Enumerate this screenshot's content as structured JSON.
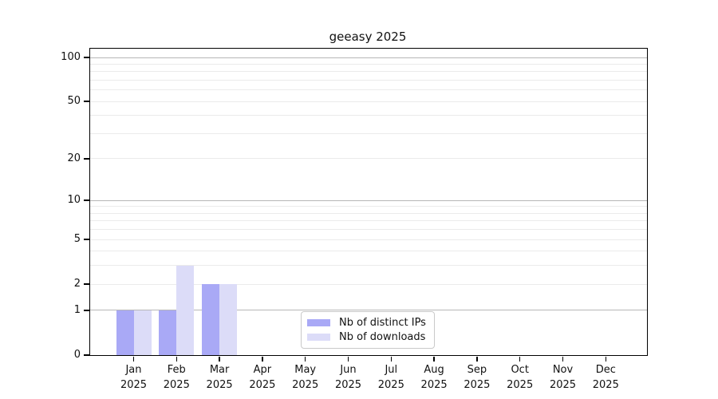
{
  "title": "geeasy 2025",
  "legend": {
    "entries": [
      {
        "label": "Nb of distinct IPs",
        "color": "#a9a9f6"
      },
      {
        "label": "Nb of downloads",
        "color": "#dcdcf8"
      }
    ],
    "position": "lower center"
  },
  "chart_data": {
    "type": "bar",
    "title": "geeasy 2025",
    "y_scale": "log1p",
    "categories": [
      "Jan 2025",
      "Feb 2025",
      "Mar 2025",
      "Apr 2025",
      "May 2025",
      "Jun 2025",
      "Jul 2025",
      "Aug 2025",
      "Sep 2025",
      "Oct 2025",
      "Nov 2025",
      "Dec 2025"
    ],
    "series": [
      {
        "name": "Nb of distinct IPs",
        "color": "#a9a9f6",
        "values": [
          1,
          1,
          2,
          0,
          0,
          0,
          0,
          0,
          0,
          0,
          0,
          0
        ]
      },
      {
        "name": "Nb of downloads",
        "color": "#dcdcf8",
        "values": [
          1,
          3,
          2,
          0,
          0,
          0,
          0,
          0,
          0,
          0,
          0,
          0
        ]
      }
    ],
    "xlabel": "",
    "ylabel": "",
    "ylim": [
      0,
      115
    ],
    "y_ticks": [
      0,
      1,
      2,
      5,
      10,
      20,
      50,
      100
    ],
    "y_major_gridlines": [
      1,
      10,
      100
    ],
    "y_minor_gridlines": [
      2,
      3,
      4,
      5,
      6,
      7,
      8,
      9,
      20,
      30,
      40,
      50,
      60,
      70,
      80,
      90
    ],
    "grid": "horizontal",
    "legend_position": "lower center",
    "colors": {
      "grid_major": "#b7b7b7",
      "grid_minor": "#ebebeb",
      "axis": "#000000",
      "background": "#ffffff",
      "legend_border": "#c9c9c9",
      "text": "#111111"
    }
  }
}
